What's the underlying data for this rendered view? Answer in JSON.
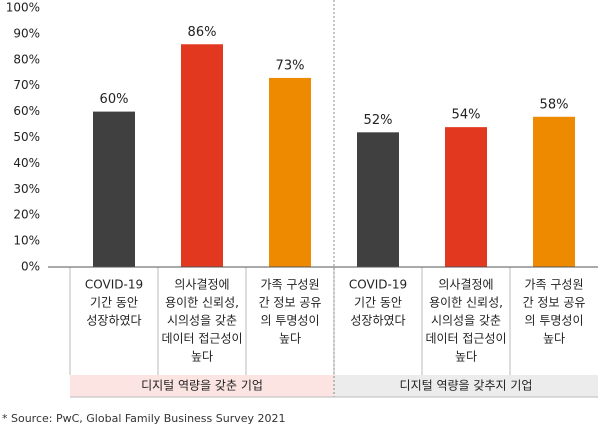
{
  "chart_data": {
    "type": "bar",
    "groups": [
      {
        "name": "디지털 역량을 갖춘 기업",
        "band_color": "#fbe4e1",
        "categories": [
          [
            "COVID-19",
            "기간 동안",
            "성장하였다"
          ],
          [
            "의사결정에",
            "용이한 신뢰성,",
            "시의성을 갖춘",
            "데이터 접근성이",
            "높다"
          ],
          [
            "가족 구성원",
            "간 정보 공유",
            "의 투명성이",
            "높다"
          ]
        ],
        "values": [
          60,
          86,
          73
        ],
        "value_labels": [
          "60%",
          "86%",
          "73%"
        ]
      },
      {
        "name": "디지털 역량을 갖추지 기업",
        "band_color": "#ececec",
        "categories": [
          [
            "COVID-19",
            "기간 동안",
            "성장하였다"
          ],
          [
            "의사결정에",
            "용이한 신뢰성,",
            "시의성을 갖춘",
            "데이터 접근성이",
            "높다"
          ],
          [
            "가족 구성원",
            "간 정보 공유",
            "의 투명성이",
            "높다"
          ]
        ],
        "values": [
          52,
          54,
          58
        ],
        "value_labels": [
          "52%",
          "54%",
          "58%"
        ]
      }
    ],
    "colors": [
      "#404040",
      "#e1381f",
      "#ee8a00"
    ],
    "ylim": [
      0,
      100
    ],
    "yticks": [
      {
        "value": 0,
        "label": "0%"
      },
      {
        "value": 10,
        "label": "10%"
      },
      {
        "value": 20,
        "label": "20%"
      },
      {
        "value": 30,
        "label": "30%"
      },
      {
        "value": 40,
        "label": "40%"
      },
      {
        "value": 50,
        "label": "50%"
      },
      {
        "value": 60,
        "label": "60%"
      },
      {
        "value": 70,
        "label": "70%"
      },
      {
        "value": 80,
        "label": "80%"
      },
      {
        "value": 90,
        "label": "90%"
      },
      {
        "value": 100,
        "label": "100%"
      }
    ],
    "footnote": "* Source: PwC, Global Family Business Survey 2021"
  }
}
